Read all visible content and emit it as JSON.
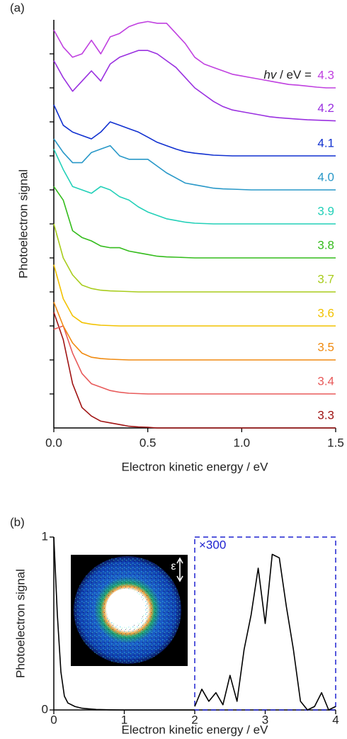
{
  "chart_data": [
    {
      "type": "line",
      "panel_label": "(a)",
      "ylabel": "Photoelectron signal",
      "xlabel": "Electron kinetic energy / eV",
      "xlim": [
        0,
        1.5
      ],
      "ylim": [
        0,
        12
      ],
      "xticks": [
        {
          "value": 0,
          "label": "0.0"
        },
        {
          "value": 0.5,
          "label": "0.5"
        },
        {
          "value": 1,
          "label": "1.0"
        },
        {
          "value": 1.5,
          "label": "1.5"
        }
      ],
      "yticks": [
        1,
        2,
        3,
        4,
        5,
        6,
        7,
        8,
        9,
        10,
        11
      ],
      "legend_prefix": {
        "italic": "hv",
        "text": " / eV ="
      },
      "x": [
        0,
        0.05,
        0.1,
        0.15,
        0.2,
        0.25,
        0.3,
        0.35,
        0.4,
        0.45,
        0.5,
        0.55,
        0.6,
        0.65,
        0.7,
        0.75,
        0.8,
        0.85,
        0.9,
        0.95,
        1.0,
        1.05,
        1.1,
        1.15,
        1.2,
        1.25,
        1.3,
        1.35,
        1.4,
        1.45,
        1.5
      ],
      "series": [
        {
          "name": "3.3",
          "color": "#a01414",
          "values": [
            3.4,
            2.6,
            1.3,
            0.6,
            0.35,
            0.2,
            0.15,
            0.1,
            0.05,
            0.03,
            0.02,
            0,
            0,
            0,
            0,
            0,
            0,
            0,
            0,
            0,
            0,
            0,
            0,
            0,
            0,
            0,
            0,
            0,
            0,
            0,
            0
          ]
        },
        {
          "name": "3.4",
          "color": "#e85a5a",
          "values": [
            2.9,
            3.0,
            2.2,
            1.6,
            1.3,
            1.2,
            1.1,
            1.05,
            1.02,
            1.01,
            1,
            1,
            1,
            1,
            1,
            1,
            1,
            1,
            1,
            1,
            1,
            1,
            1,
            1,
            1,
            1,
            1,
            1,
            1,
            1,
            1
          ]
        },
        {
          "name": "3.5",
          "color": "#f08a10",
          "values": [
            3.7,
            3.0,
            2.5,
            2.2,
            2.08,
            2.04,
            2.02,
            2.01,
            2,
            2,
            2,
            2,
            2,
            2,
            2,
            2,
            2,
            2,
            2,
            2,
            2,
            2,
            2,
            2,
            2,
            2,
            2,
            2,
            2,
            2,
            2
          ]
        },
        {
          "name": "3.6",
          "color": "#f2c200",
          "values": [
            4.8,
            3.8,
            3.3,
            3.1,
            3.05,
            3.02,
            3.01,
            3,
            3,
            3,
            3,
            3,
            3,
            3,
            3,
            3,
            3,
            3,
            3,
            3,
            3,
            3,
            3,
            3,
            3,
            3,
            3,
            3,
            3,
            3,
            3
          ]
        },
        {
          "name": "3.7",
          "color": "#a8cc1c",
          "values": [
            6.0,
            5.0,
            4.5,
            4.2,
            4.1,
            4.05,
            4.03,
            4.02,
            4.01,
            4,
            4,
            4,
            4,
            4,
            4,
            4,
            4,
            4,
            4,
            4,
            4,
            4,
            4,
            4,
            4,
            4,
            4,
            4,
            4,
            4,
            4
          ]
        },
        {
          "name": "3.8",
          "color": "#34bc1c",
          "values": [
            7.1,
            6.7,
            5.8,
            5.6,
            5.5,
            5.35,
            5.3,
            5.3,
            5.2,
            5.15,
            5.1,
            5.05,
            5.03,
            5.02,
            5.01,
            5,
            5,
            5,
            5,
            5,
            5,
            5,
            5,
            5,
            5,
            5,
            5,
            5,
            5,
            5,
            5
          ]
        },
        {
          "name": "3.9",
          "color": "#22d0b8",
          "values": [
            8.2,
            7.6,
            7.1,
            7.0,
            6.9,
            7.1,
            7.0,
            6.8,
            6.7,
            6.5,
            6.35,
            6.25,
            6.15,
            6.1,
            6.05,
            6.02,
            6.01,
            6,
            6,
            6,
            6,
            6,
            6,
            6,
            6,
            6,
            6,
            6,
            6,
            6,
            6
          ]
        },
        {
          "name": "4.0",
          "color": "#2898c8",
          "values": [
            8.5,
            8.1,
            7.8,
            7.8,
            8.1,
            8.2,
            8.3,
            8.0,
            7.9,
            7.9,
            7.9,
            7.7,
            7.5,
            7.35,
            7.2,
            7.15,
            7.1,
            7.05,
            7.03,
            7.02,
            7.01,
            7,
            7,
            7,
            7,
            7,
            7,
            7,
            7,
            7,
            7
          ]
        },
        {
          "name": "4.1",
          "color": "#1030d0",
          "values": [
            9.5,
            8.9,
            8.7,
            8.6,
            8.5,
            8.7,
            9.0,
            8.9,
            8.8,
            8.7,
            8.55,
            8.4,
            8.3,
            8.2,
            8.12,
            8.08,
            8.05,
            8.02,
            8.01,
            8,
            8,
            8,
            8,
            8,
            8,
            8,
            8,
            8,
            8,
            8,
            8
          ]
        },
        {
          "name": "4.2",
          "color": "#9a30e0",
          "values": [
            10.8,
            10.3,
            9.9,
            10.2,
            10.5,
            10.2,
            10.7,
            10.9,
            11.0,
            11.1,
            11.1,
            11.0,
            10.8,
            10.6,
            10.3,
            10.0,
            9.8,
            9.6,
            9.45,
            9.35,
            9.3,
            9.25,
            9.2,
            9.15,
            9.12,
            9.1,
            9.08,
            9.06,
            9.05,
            9.04,
            9.03
          ]
        },
        {
          "name": "4.3",
          "color": "#c040e0",
          "values": [
            11.7,
            11.2,
            10.9,
            11.0,
            11.4,
            11.0,
            11.5,
            11.6,
            11.8,
            11.9,
            11.95,
            11.9,
            11.9,
            11.6,
            11.3,
            10.9,
            10.7,
            10.6,
            10.5,
            10.4,
            10.35,
            10.3,
            10.25,
            10.2,
            10.15,
            10.1,
            10.08,
            10.05,
            10.02,
            10,
            10
          ]
        }
      ]
    },
    {
      "type": "line",
      "panel_label": "(b)",
      "ylabel": "Photoelectron signal",
      "xlabel": "Electron kinetic energy / eV",
      "xlim": [
        0,
        4
      ],
      "ylim": [
        0,
        1
      ],
      "xticks": [
        0,
        1,
        2,
        3,
        4
      ],
      "yticks": [
        0,
        1
      ],
      "box_label": "×300",
      "box_color": "#1f22d0",
      "inset_label": "ε",
      "series": [
        {
          "color": "#000000",
          "x": [
            0,
            0.05,
            0.1,
            0.15,
            0.2,
            0.3,
            0.4,
            0.6,
            0.8,
            1.0,
            1.5,
            2.0
          ],
          "values": [
            1,
            0.55,
            0.22,
            0.08,
            0.04,
            0.02,
            0.01,
            0.003,
            0.001,
            0,
            0,
            0
          ]
        },
        {
          "color": "#000000",
          "x": [
            2.0,
            2.1,
            2.2,
            2.3,
            2.4,
            2.5,
            2.6,
            2.7,
            2.8,
            2.9,
            3.0,
            3.1,
            3.2,
            3.3,
            3.4,
            3.5,
            3.6,
            3.7,
            3.8,
            3.9,
            4.0
          ],
          "values": [
            0.02,
            0.12,
            0.05,
            0.1,
            0.03,
            0.2,
            0.05,
            0.35,
            0.55,
            0.82,
            0.5,
            0.9,
            0.88,
            0.6,
            0.35,
            0.05,
            0,
            0.02,
            0.1,
            0,
            0.02
          ]
        }
      ]
    }
  ]
}
